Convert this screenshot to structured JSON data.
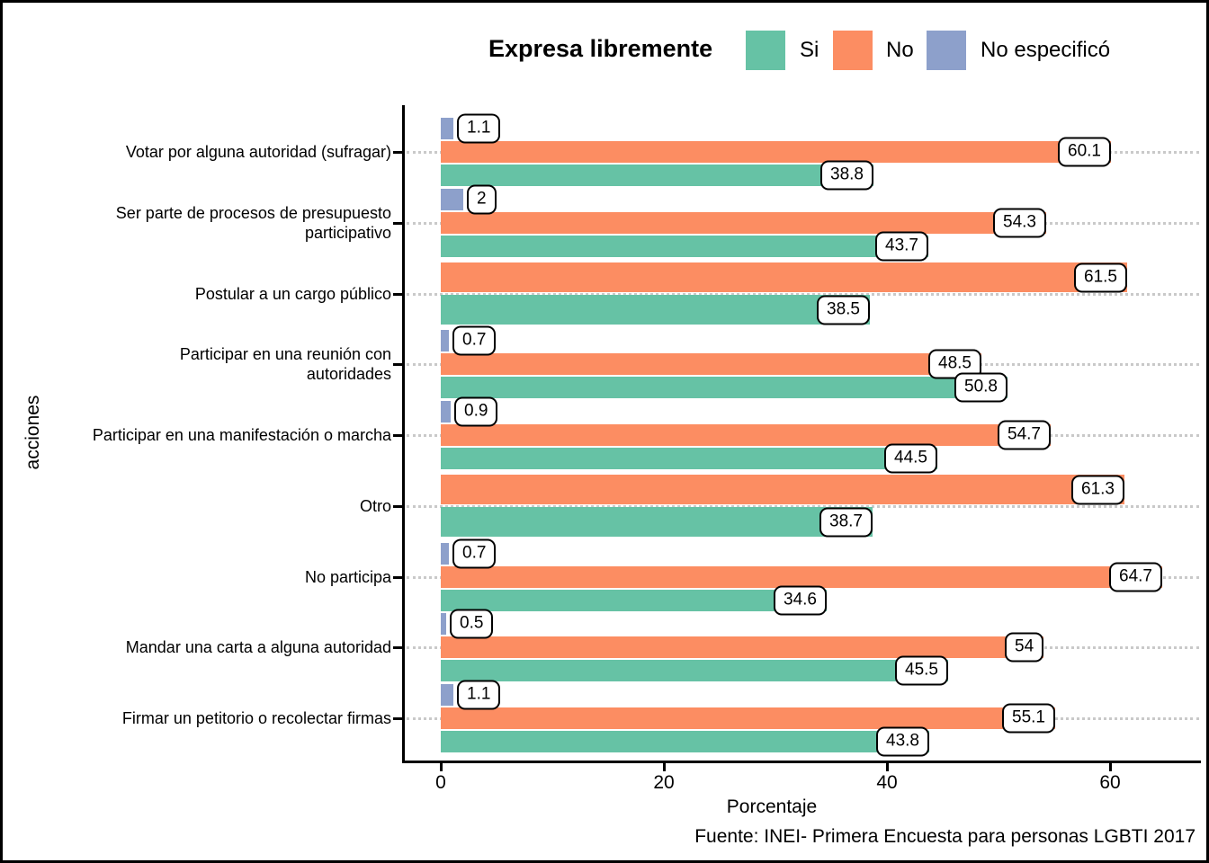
{
  "chart_data": {
    "type": "bar",
    "orientation": "horizontal",
    "legend_title": "Expresa libremente",
    "legend_position": "top",
    "xlabel": "Porcentaje",
    "ylabel": "acciones",
    "caption": "Fuente: INEI- Primera Encuesta para personas LGBTI 2017",
    "x_ticks": [
      0,
      20,
      40,
      60
    ],
    "xlim": [
      0,
      68
    ],
    "grid": "dotted-horizontal-per-category",
    "value_label_style": "boxed",
    "categories": [
      {
        "label": "Votar por alguna autoridad (sufragar)",
        "lines": [
          "Votar por alguna autoridad (sufragar)"
        ]
      },
      {
        "label": "Ser parte de procesos de presupuesto participativo",
        "lines": [
          "Ser parte de procesos de presupuesto",
          "participativo"
        ]
      },
      {
        "label": "Postular a un cargo público",
        "lines": [
          "Postular a un cargo público"
        ]
      },
      {
        "label": "Participar en una reunión con autoridades",
        "lines": [
          "Participar en una reunión con",
          "autoridades"
        ]
      },
      {
        "label": "Participar en una manifestación o marcha",
        "lines": [
          "Participar en una manifestación o marcha"
        ]
      },
      {
        "label": "Otro",
        "lines": [
          "Otro"
        ]
      },
      {
        "label": "No participa",
        "lines": [
          "No participa"
        ]
      },
      {
        "label": "Mandar una carta a alguna autoridad",
        "lines": [
          "Mandar una carta a alguna autoridad"
        ]
      },
      {
        "label": "Firmar un petitorio o recolectar firmas",
        "lines": [
          "Firmar un petitorio o recolectar firmas"
        ]
      }
    ],
    "series": [
      {
        "name": "Si",
        "color": "#66C2A5",
        "values": [
          38.8,
          43.7,
          38.5,
          50.8,
          44.5,
          38.7,
          34.6,
          45.5,
          43.8
        ]
      },
      {
        "name": "No",
        "color": "#FC8D62",
        "values": [
          60.1,
          54.3,
          61.5,
          48.5,
          54.7,
          61.3,
          64.7,
          54,
          55.1
        ]
      },
      {
        "name": "No especificó",
        "color": "#8DA0CB",
        "values": [
          1.1,
          2,
          null,
          0.7,
          0.9,
          null,
          0.7,
          0.5,
          1.1
        ]
      }
    ]
  }
}
